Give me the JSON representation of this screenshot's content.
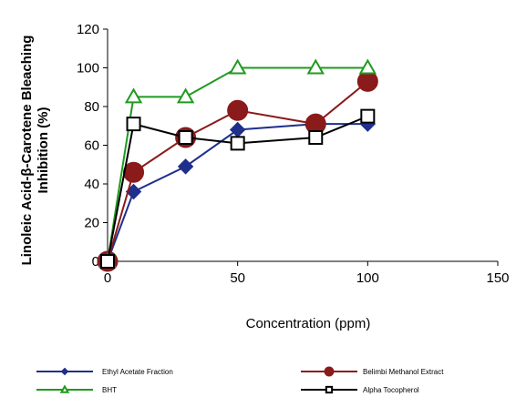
{
  "chart_data": {
    "type": "line",
    "title": "",
    "xlabel": "Concentration (ppm)",
    "ylabel_line1": "Linoleic Acid-β-Carotene Bleaching",
    "ylabel_line2": "Inhibition (%)",
    "xlim": [
      0,
      150
    ],
    "ylim": [
      0,
      120
    ],
    "xticks": [
      0,
      50,
      100,
      150
    ],
    "yticks": [
      0,
      20,
      40,
      60,
      80,
      100,
      120
    ],
    "grid": false,
    "legend_position": "bottom",
    "series": [
      {
        "name": "Ethyl Acetate  Fraction",
        "color": "#1f2f8c",
        "marker": "diamond",
        "x": [
          0,
          10,
          30,
          50,
          80,
          100
        ],
        "y": [
          0,
          36,
          49,
          68,
          71,
          71
        ]
      },
      {
        "name": "Belimbi Methanol Extract",
        "color": "#8b1a1a",
        "marker": "circle",
        "x": [
          0,
          10,
          30,
          50,
          80,
          100
        ],
        "y": [
          0,
          46,
          64,
          78,
          71,
          93
        ]
      },
      {
        "name": "BHT",
        "color": "#1f9a1f",
        "marker": "triangle",
        "x": [
          0,
          10,
          30,
          50,
          80,
          100
        ],
        "y": [
          0,
          85,
          85,
          100,
          100,
          100
        ]
      },
      {
        "name": "Alpha Tocopherol",
        "color": "#000000",
        "marker": "square",
        "x": [
          0,
          10,
          30,
          50,
          80,
          100
        ],
        "y": [
          0,
          71,
          64,
          61,
          64,
          75
        ]
      }
    ]
  }
}
